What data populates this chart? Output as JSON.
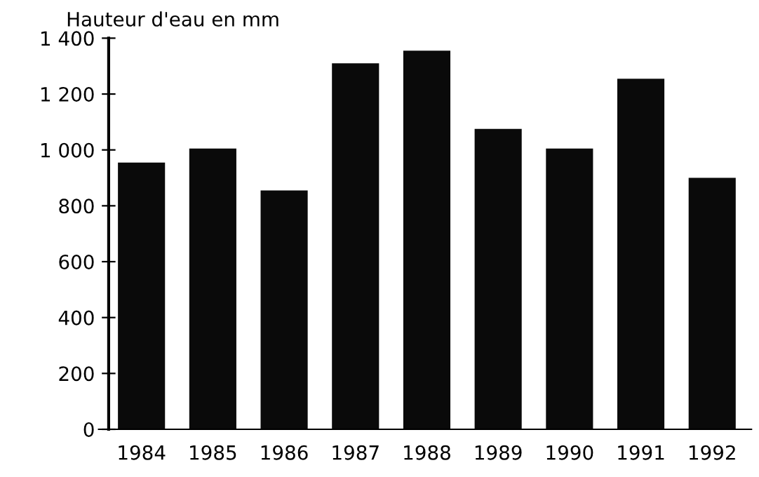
{
  "chart_data": {
    "type": "bar",
    "ylabel": "Hauteur d'eau en mm",
    "categories": [
      "1984",
      "1985",
      "1986",
      "1987",
      "1988",
      "1989",
      "1990",
      "1991",
      "1992"
    ],
    "values": [
      955,
      1005,
      855,
      1310,
      1355,
      1075,
      1005,
      1255,
      900
    ],
    "color": "#0a0a0a",
    "ylim": [
      0,
      1400
    ],
    "yticks": [
      0,
      200,
      400,
      600,
      800,
      {
        "value": 1000,
        "label": "1 000"
      },
      {
        "value": 1200,
        "label": "1 200"
      },
      {
        "value": 1400,
        "label": "1 400"
      }
    ],
    "grid": false
  }
}
